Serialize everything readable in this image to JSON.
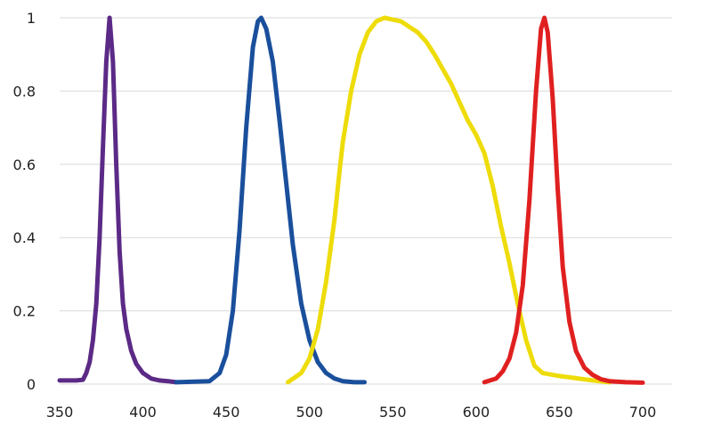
{
  "chart_data": {
    "type": "line",
    "title": "",
    "xlabel": "",
    "ylabel": "",
    "xlim": [
      350,
      700
    ],
    "ylim": [
      0,
      1
    ],
    "grid": true,
    "x_ticks": [
      "350",
      "400",
      "450",
      "500",
      "550",
      "600",
      "650",
      "700"
    ],
    "y_ticks": [
      "0",
      "0.2",
      "0.4",
      "0.6",
      "0.8",
      "1"
    ],
    "series": [
      {
        "color": "#5b2a86",
        "x": [
          350,
          360,
          364,
          366,
          368,
          370,
          372,
          374,
          376,
          378,
          380,
          382,
          384,
          386,
          388,
          390,
          393,
          396,
          400,
          405,
          410,
          415,
          420
        ],
        "y": [
          0.01,
          0.01,
          0.012,
          0.03,
          0.06,
          0.12,
          0.22,
          0.4,
          0.65,
          0.88,
          1.0,
          0.88,
          0.6,
          0.36,
          0.22,
          0.15,
          0.09,
          0.055,
          0.03,
          0.015,
          0.01,
          0.008,
          0.005
        ]
      },
      {
        "color": "#1a4f9c",
        "x": [
          420,
          440,
          446,
          450,
          454,
          458,
          462,
          466,
          469,
          471,
          474,
          478,
          482,
          486,
          490,
          495,
          500,
          505,
          510,
          515,
          520,
          527,
          533
        ],
        "y": [
          0.005,
          0.008,
          0.03,
          0.08,
          0.2,
          0.42,
          0.7,
          0.92,
          0.99,
          1.0,
          0.97,
          0.88,
          0.72,
          0.55,
          0.38,
          0.22,
          0.12,
          0.06,
          0.03,
          0.015,
          0.008,
          0.005,
          0.005
        ]
      },
      {
        "color": "#eedc0a",
        "x": [
          487,
          495,
          500,
          505,
          510,
          515,
          518,
          520,
          525,
          530,
          535,
          540,
          545,
          550,
          555,
          560,
          565,
          570,
          575,
          580,
          585,
          590,
          595,
          600,
          605,
          610,
          615,
          620,
          625,
          630,
          635,
          640,
          650,
          660,
          670,
          680
        ],
        "y": [
          0.005,
          0.03,
          0.07,
          0.15,
          0.28,
          0.45,
          0.58,
          0.66,
          0.8,
          0.9,
          0.96,
          0.99,
          1.0,
          0.995,
          0.99,
          0.975,
          0.96,
          0.935,
          0.9,
          0.86,
          0.82,
          0.77,
          0.72,
          0.68,
          0.63,
          0.54,
          0.43,
          0.33,
          0.22,
          0.12,
          0.05,
          0.03,
          0.022,
          0.016,
          0.01,
          0.005
        ]
      },
      {
        "color": "#e02020",
        "x": [
          605,
          612,
          616,
          620,
          624,
          628,
          632,
          636,
          639,
          641,
          643,
          646,
          649,
          652,
          656,
          660,
          665,
          670,
          675,
          680,
          690,
          700
        ],
        "y": [
          0.005,
          0.015,
          0.035,
          0.07,
          0.14,
          0.27,
          0.5,
          0.8,
          0.97,
          1.0,
          0.96,
          0.78,
          0.53,
          0.32,
          0.17,
          0.09,
          0.045,
          0.025,
          0.013,
          0.008,
          0.005,
          0.004
        ]
      }
    ]
  }
}
